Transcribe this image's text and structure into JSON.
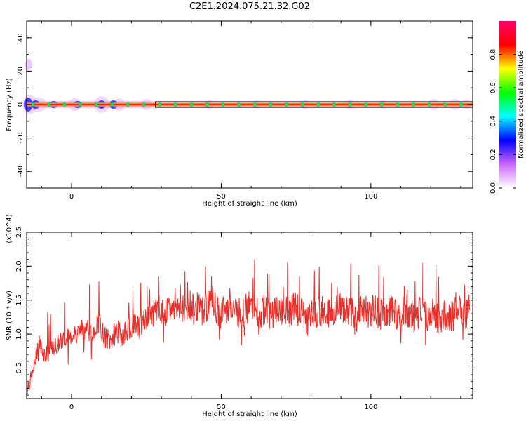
{
  "title": "C2E1.2024.075.21.32.G02",
  "chart_data": [
    {
      "type": "heatmap",
      "xlabel": "Height of straight line (km)",
      "ylabel": "Frequency (Hz)",
      "xlim": [
        -15,
        134
      ],
      "ylim": [
        -50,
        50
      ],
      "xticks": [
        "0",
        "50",
        "100"
      ],
      "yticks": [
        "40",
        "20",
        "0",
        "-20",
        "-40"
      ],
      "signal_frequency": 0,
      "colorbar": {
        "label": "Normalized spectral amplitude",
        "range": [
          0.0,
          1.0
        ],
        "ticks": [
          "0.0",
          "0.2",
          "0.4",
          "0.6",
          "0.8"
        ],
        "colors": [
          "#ffffff",
          "#cc66ff",
          "#0000ff",
          "#00ffff",
          "#00ff00",
          "#ffff00",
          "#ff0000",
          "#ff0066"
        ]
      }
    },
    {
      "type": "line",
      "xlabel": "Height of straight line (km)",
      "ylabel": "SNR (10 * v/v)",
      "yunit": "(x10^4)",
      "xlim": [
        -15,
        134
      ],
      "ylim": [
        0.05,
        2.5
      ],
      "xticks": [
        "0",
        "50",
        "100"
      ],
      "yticks": [
        "0.5",
        "1.0",
        "1.5",
        "2.0",
        "2.5"
      ],
      "color": "#e8302a",
      "series": [
        {
          "x": [
            -15,
            -13,
            -11,
            -9,
            -7,
            -5,
            -3,
            -1,
            1,
            3,
            5,
            7,
            9,
            11,
            13,
            15,
            17,
            19,
            21,
            23,
            25,
            27,
            29,
            31,
            33,
            35,
            37,
            39,
            41,
            43,
            45,
            47,
            49,
            51,
            53,
            55,
            57,
            59,
            61,
            63,
            65,
            67,
            69,
            71,
            73,
            75,
            77,
            79,
            81,
            83,
            85,
            87,
            89,
            91,
            93,
            95,
            97,
            99,
            101,
            103,
            105,
            107,
            109,
            111,
            113,
            115,
            117,
            119,
            121,
            123,
            125,
            127,
            129,
            131,
            133
          ],
          "y": [
            0.2,
            0.4,
            0.9,
            0.7,
            0.75,
            0.85,
            0.9,
            0.95,
            1.0,
            1.05,
            1.1,
            1.0,
            1.2,
            0.95,
            0.9,
            1.05,
            1.0,
            1.1,
            1.2,
            1.1,
            1.25,
            1.3,
            1.4,
            1.3,
            1.35,
            1.45,
            1.35,
            1.4,
            1.45,
            1.35,
            1.4,
            1.5,
            1.3,
            1.35,
            1.45,
            1.35,
            1.3,
            1.4,
            1.35,
            1.3,
            1.4,
            1.25,
            1.35,
            1.3,
            1.35,
            1.4,
            1.3,
            1.2,
            1.35,
            1.3,
            1.4,
            1.25,
            1.5,
            1.3,
            1.35,
            1.2,
            1.4,
            1.3,
            1.35,
            1.3,
            1.25,
            1.4,
            1.2,
            1.35,
            1.3,
            1.2,
            1.4,
            1.25,
            1.35,
            1.2,
            1.3,
            1.25,
            1.35,
            1.3,
            1.35
          ]
        }
      ]
    }
  ]
}
